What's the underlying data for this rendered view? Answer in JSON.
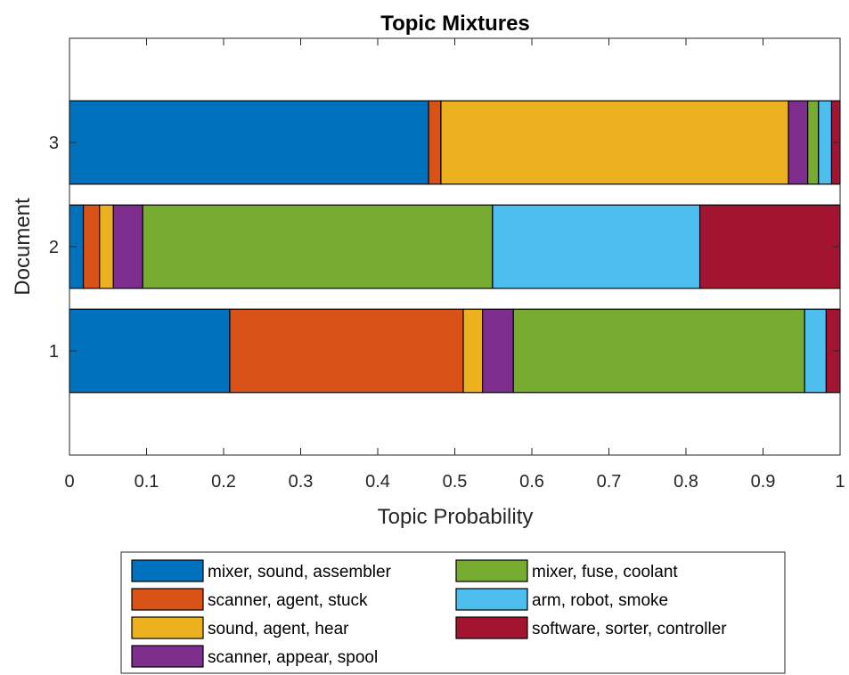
{
  "chart_data": {
    "type": "bar",
    "orientation": "horizontal",
    "stacked": true,
    "title": "Topic Mixtures",
    "xlabel": "Topic Probability",
    "ylabel": "Document",
    "xlim": [
      0,
      1
    ],
    "ylim": [
      0,
      4
    ],
    "x_ticks": [
      0,
      0.1,
      0.2,
      0.3,
      0.4,
      0.5,
      0.6,
      0.7,
      0.8,
      0.9,
      1
    ],
    "x_tick_labels": [
      "0",
      "0.1",
      "0.2",
      "0.3",
      "0.4",
      "0.5",
      "0.6",
      "0.7",
      "0.8",
      "0.9",
      "1"
    ],
    "categories": [
      "1",
      "2",
      "3"
    ],
    "grid": false,
    "legend_position": "bottom-outside",
    "series": [
      {
        "name": "mixer, sound, assembler",
        "color": "#0072BD",
        "values": [
          0.208,
          0.018,
          0.466
        ]
      },
      {
        "name": "scanner, agent, stuck",
        "color": "#D95319",
        "values": [
          0.303,
          0.021,
          0.016
        ]
      },
      {
        "name": "sound, agent, hear",
        "color": "#EDB120",
        "values": [
          0.025,
          0.018,
          0.451
        ]
      },
      {
        "name": "scanner, appear, spool",
        "color": "#7E2F8E",
        "values": [
          0.04,
          0.038,
          0.025
        ]
      },
      {
        "name": "mixer, fuse, coolant",
        "color": "#77AC30",
        "values": [
          0.378,
          0.454,
          0.014
        ]
      },
      {
        "name": "arm, robot, smoke",
        "color": "#4DBEEE",
        "values": [
          0.028,
          0.269,
          0.017
        ]
      },
      {
        "name": "software, sorter, controller",
        "color": "#A2142F",
        "values": [
          0.018,
          0.182,
          0.011
        ]
      }
    ]
  }
}
